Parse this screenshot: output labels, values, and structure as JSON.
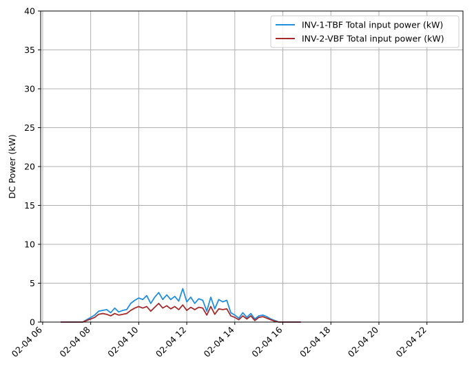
{
  "chart_data": {
    "type": "line",
    "title": "",
    "xlabel": "",
    "ylabel": "DC Power (kW)",
    "ylim": [
      0,
      40
    ],
    "xlim": [
      "02-04 05:55",
      "02-04 23:30"
    ],
    "grid": true,
    "legend_position": "top-right",
    "x_ticks": [
      "02-04 06",
      "02-04 08",
      "02-04 10",
      "02-04 12",
      "02-04 14",
      "02-04 16",
      "02-04 18",
      "02-04 20",
      "02-04 22"
    ],
    "y_ticks": [
      "0",
      "5",
      "10",
      "15",
      "20",
      "25",
      "30",
      "35",
      "40"
    ],
    "series": [
      {
        "name": "INV-1-TBF Total input power (kW)",
        "color": "#1f8ee0",
        "points": [
          [
            "02-04 06:45",
            0
          ],
          [
            "02-04 07:40",
            0
          ],
          [
            "02-04 07:50",
            0.3
          ],
          [
            "02-04 08:00",
            0.6
          ],
          [
            "02-04 08:10",
            0.9
          ],
          [
            "02-04 08:20",
            1.4
          ],
          [
            "02-04 08:30",
            1.5
          ],
          [
            "02-04 08:40",
            1.6
          ],
          [
            "02-04 08:50",
            1.2
          ],
          [
            "02-04 09:00",
            1.8
          ],
          [
            "02-04 09:10",
            1.3
          ],
          [
            "02-04 09:20",
            1.5
          ],
          [
            "02-04 09:30",
            1.6
          ],
          [
            "02-04 09:40",
            2.4
          ],
          [
            "02-04 09:50",
            2.8
          ],
          [
            "02-04 10:00",
            3.1
          ],
          [
            "02-04 10:10",
            2.9
          ],
          [
            "02-04 10:20",
            3.4
          ],
          [
            "02-04 10:30",
            2.4
          ],
          [
            "02-04 10:40",
            3.2
          ],
          [
            "02-04 10:50",
            3.8
          ],
          [
            "02-04 11:00",
            2.9
          ],
          [
            "02-04 11:10",
            3.5
          ],
          [
            "02-04 11:20",
            2.9
          ],
          [
            "02-04 11:30",
            3.3
          ],
          [
            "02-04 11:40",
            2.7
          ],
          [
            "02-04 11:50",
            4.3
          ],
          [
            "02-04 12:00",
            2.6
          ],
          [
            "02-04 12:10",
            3.2
          ],
          [
            "02-04 12:20",
            2.4
          ],
          [
            "02-04 12:30",
            3.0
          ],
          [
            "02-04 12:40",
            2.8
          ],
          [
            "02-04 12:50",
            1.4
          ],
          [
            "02-04 13:00",
            3.2
          ],
          [
            "02-04 13:10",
            1.7
          ],
          [
            "02-04 13:20",
            2.9
          ],
          [
            "02-04 13:30",
            2.6
          ],
          [
            "02-04 13:40",
            2.8
          ],
          [
            "02-04 13:50",
            1.2
          ],
          [
            "02-04 14:00",
            0.9
          ],
          [
            "02-04 14:10",
            0.5
          ],
          [
            "02-04 14:20",
            1.2
          ],
          [
            "02-04 14:30",
            0.6
          ],
          [
            "02-04 14:40",
            1.1
          ],
          [
            "02-04 14:50",
            0.4
          ],
          [
            "02-04 15:00",
            0.8
          ],
          [
            "02-04 15:10",
            0.9
          ],
          [
            "02-04 15:20",
            0.7
          ],
          [
            "02-04 15:30",
            0.4
          ],
          [
            "02-04 15:40",
            0.2
          ],
          [
            "02-04 15:50",
            0
          ],
          [
            "02-04 16:45",
            0
          ]
        ]
      },
      {
        "name": "INV-2-VBF Total input power (kW)",
        "color": "#a52a2a",
        "points": [
          [
            "02-04 06:45",
            0
          ],
          [
            "02-04 07:40",
            0
          ],
          [
            "02-04 07:50",
            0.2
          ],
          [
            "02-04 08:00",
            0.4
          ],
          [
            "02-04 08:10",
            0.6
          ],
          [
            "02-04 08:20",
            1.0
          ],
          [
            "02-04 08:30",
            1.1
          ],
          [
            "02-04 08:40",
            1.0
          ],
          [
            "02-04 08:50",
            0.8
          ],
          [
            "02-04 09:00",
            1.1
          ],
          [
            "02-04 09:10",
            0.9
          ],
          [
            "02-04 09:20",
            1.0
          ],
          [
            "02-04 09:30",
            1.1
          ],
          [
            "02-04 09:40",
            1.5
          ],
          [
            "02-04 09:50",
            1.8
          ],
          [
            "02-04 10:00",
            2.0
          ],
          [
            "02-04 10:10",
            1.8
          ],
          [
            "02-04 10:20",
            2.0
          ],
          [
            "02-04 10:30",
            1.4
          ],
          [
            "02-04 10:40",
            1.9
          ],
          [
            "02-04 10:50",
            2.4
          ],
          [
            "02-04 11:00",
            1.8
          ],
          [
            "02-04 11:10",
            2.1
          ],
          [
            "02-04 11:20",
            1.7
          ],
          [
            "02-04 11:30",
            2.0
          ],
          [
            "02-04 11:40",
            1.6
          ],
          [
            "02-04 11:50",
            2.2
          ],
          [
            "02-04 12:00",
            1.5
          ],
          [
            "02-04 12:10",
            1.9
          ],
          [
            "02-04 12:20",
            1.6
          ],
          [
            "02-04 12:30",
            1.9
          ],
          [
            "02-04 12:40",
            1.8
          ],
          [
            "02-04 12:50",
            0.9
          ],
          [
            "02-04 13:00",
            2.0
          ],
          [
            "02-04 13:10",
            1.0
          ],
          [
            "02-04 13:20",
            1.7
          ],
          [
            "02-04 13:30",
            1.6
          ],
          [
            "02-04 13:40",
            1.7
          ],
          [
            "02-04 13:50",
            0.8
          ],
          [
            "02-04 14:00",
            0.6
          ],
          [
            "02-04 14:10",
            0.3
          ],
          [
            "02-04 14:20",
            0.8
          ],
          [
            "02-04 14:30",
            0.4
          ],
          [
            "02-04 14:40",
            0.8
          ],
          [
            "02-04 14:50",
            0.2
          ],
          [
            "02-04 15:00",
            0.6
          ],
          [
            "02-04 15:10",
            0.7
          ],
          [
            "02-04 15:20",
            0.5
          ],
          [
            "02-04 15:30",
            0.3
          ],
          [
            "02-04 15:40",
            0.1
          ],
          [
            "02-04 15:50",
            0
          ],
          [
            "02-04 16:45",
            0
          ]
        ]
      }
    ]
  }
}
